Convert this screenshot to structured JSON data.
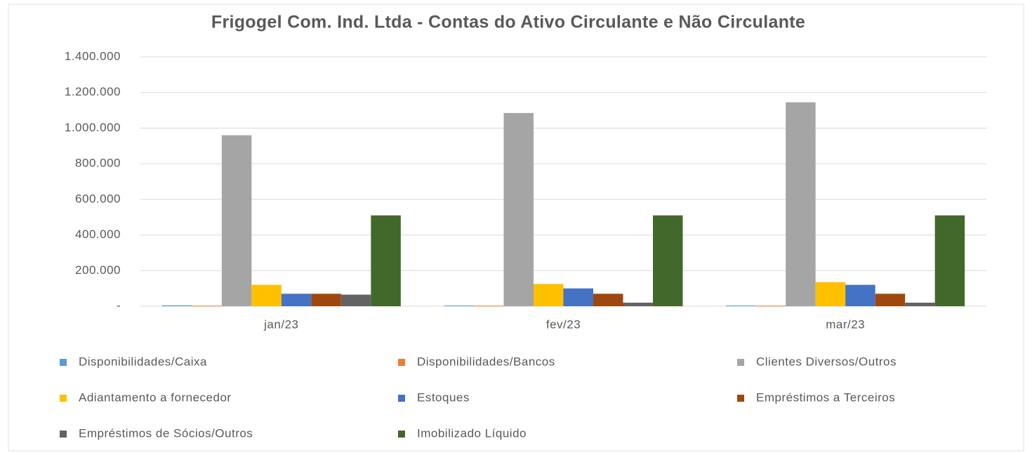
{
  "chart_data": {
    "type": "bar",
    "title": "Frigogel Com. Ind. Ltda - Contas do Ativo Circulante e Não Circulante",
    "categories": [
      "jan/23",
      "fev/23",
      "mar/23"
    ],
    "series": [
      {
        "name": "Disponibilidades/Caixa",
        "color": "#5b9bd5",
        "values": [
          5000,
          4000,
          4000
        ]
      },
      {
        "name": "Disponibilidades/Bancos",
        "color": "#ed7d31",
        "values": [
          3000,
          3000,
          3000
        ]
      },
      {
        "name": "Clientes Diversos/Outros",
        "color": "#a5a5a5",
        "values": [
          960000,
          1085000,
          1145000
        ]
      },
      {
        "name": "Adiantamento a fornecedor",
        "color": "#ffc000",
        "values": [
          120000,
          125000,
          135000
        ]
      },
      {
        "name": "Estoques",
        "color": "#4472c4",
        "values": [
          70000,
          100000,
          120000
        ]
      },
      {
        "name": "Empréstimos a Terceiros",
        "color": "#9e480e",
        "values": [
          70000,
          70000,
          70000
        ]
      },
      {
        "name": "Empréstimos de Sócios/Outros",
        "color": "#636363",
        "values": [
          65000,
          20000,
          20000
        ]
      },
      {
        "name": "Imobilizado Líquido",
        "color": "#43682b",
        "values": [
          510000,
          510000,
          510000
        ]
      }
    ],
    "ylim": [
      0,
      1400000
    ],
    "yticks": [
      {
        "value": 0,
        "label": "-"
      },
      {
        "value": 200000,
        "label": "200.000"
      },
      {
        "value": 400000,
        "label": "400.000"
      },
      {
        "value": 600000,
        "label": "600.000"
      },
      {
        "value": 800000,
        "label": "800.000"
      },
      {
        "value": 1000000,
        "label": "1.000.000"
      },
      {
        "value": 1200000,
        "label": "1.200.000"
      },
      {
        "value": 1400000,
        "label": "1.400.000"
      }
    ],
    "grid": true,
    "legend": "bottom"
  }
}
